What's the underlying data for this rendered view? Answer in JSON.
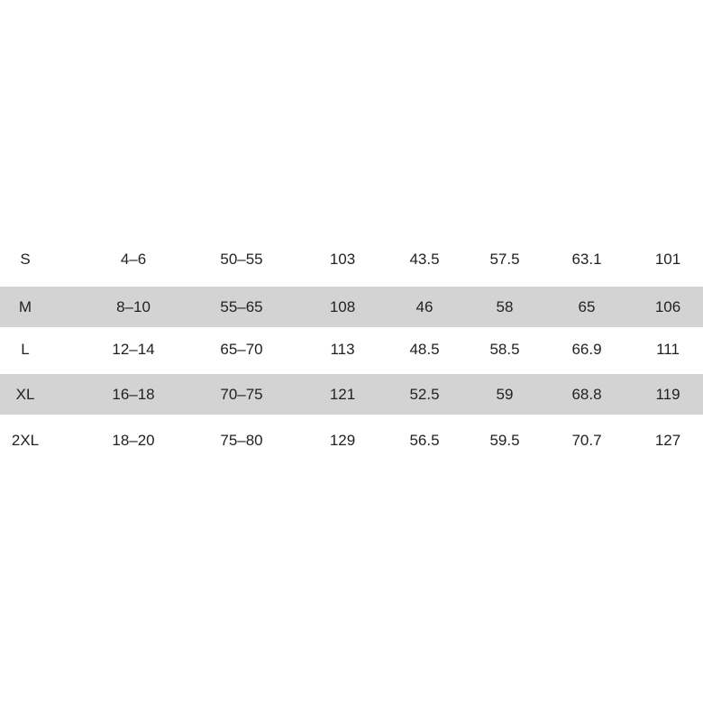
{
  "shade_color": "#d3d3d3",
  "rows": [
    {
      "cells": [
        "S",
        "4–6",
        "50–55",
        "103",
        "43.5",
        "57.5",
        "63.1",
        "101"
      ],
      "shaded": false
    },
    {
      "cells": [
        "M",
        "8–10",
        "55–65",
        "108",
        "46",
        "58",
        "65",
        "106"
      ],
      "shaded": true
    },
    {
      "cells": [
        "L",
        "12–14",
        "65–70",
        "113",
        "48.5",
        "58.5",
        "66.9",
        "111"
      ],
      "shaded": false
    },
    {
      "cells": [
        "XL",
        "16–18",
        "70–75",
        "121",
        "52.5",
        "59",
        "68.8",
        "119"
      ],
      "shaded": true
    },
    {
      "cells": [
        "2XL",
        "18–20",
        "75–80",
        "129",
        "56.5",
        "59.5",
        "70.7",
        "127"
      ],
      "shaded": false
    }
  ]
}
